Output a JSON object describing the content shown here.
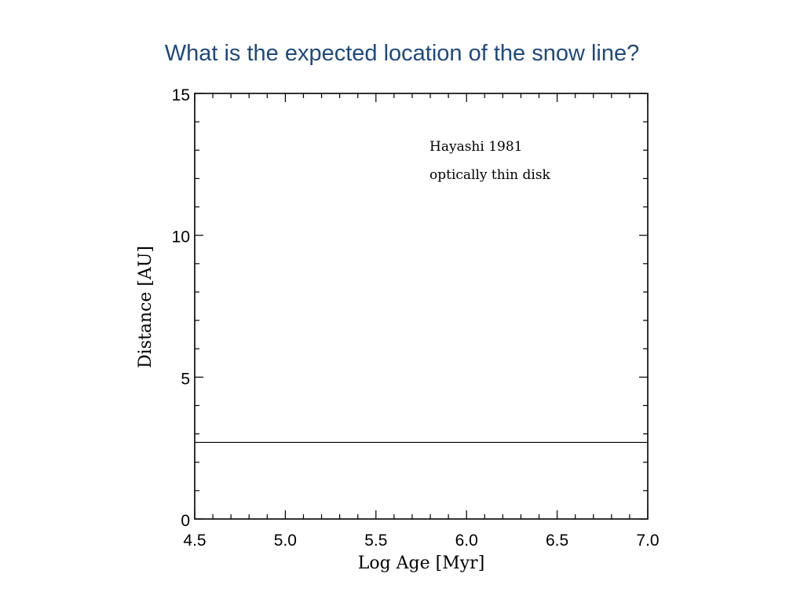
{
  "slide": {
    "title": "What is the expected location of the snow line?"
  },
  "chart_data": {
    "type": "line",
    "xlabel": "Log Age [Myr]",
    "ylabel": "Distance [AU]",
    "xlim": [
      4.5,
      7.0
    ],
    "ylim": [
      0,
      15
    ],
    "xticks": [
      4.5,
      5.0,
      5.5,
      6.0,
      6.5,
      7.0
    ],
    "xtick_labels": [
      "4.5",
      "5.0",
      "5.5",
      "6.0",
      "6.5",
      "7.0"
    ],
    "xminor_step": 0.1,
    "yticks": [
      0,
      5,
      10,
      15
    ],
    "ytick_labels": [
      "0",
      "5",
      "10",
      "15"
    ],
    "yminor_step": 1,
    "grid": false,
    "annotations": [
      "Hayashi 1981",
      "optically thin disk"
    ],
    "series": [
      {
        "x": [
          4.5,
          7.0
        ],
        "y": [
          2.7,
          2.7
        ],
        "color": "#000000"
      }
    ]
  }
}
